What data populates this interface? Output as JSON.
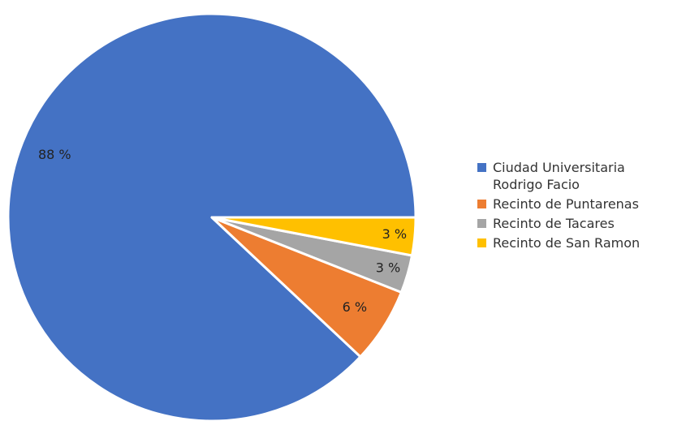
{
  "chart_data": {
    "type": "pie",
    "categories": [
      "Ciudad Universitaria Rodrigo Facio",
      "Recinto de Puntarenas",
      "Recinto de Tacares",
      "Recinto de San Ramon"
    ],
    "values": [
      88,
      6,
      3,
      3
    ],
    "value_labels": [
      "88 %",
      "6 %",
      "3 %",
      "3 %"
    ],
    "colors": [
      "#4472c4",
      "#ed7d31",
      "#a5a5a5",
      "#ffc000"
    ],
    "legend": "right"
  }
}
